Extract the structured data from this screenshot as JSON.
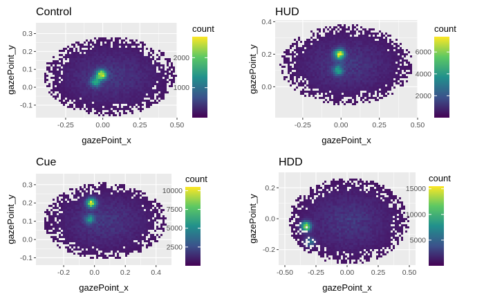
{
  "chart_data": [
    {
      "type": "heatmap",
      "title": "Control",
      "xlabel": "gazePoint_x",
      "ylabel": "gazePoint_y",
      "xlim": [
        -0.45,
        0.5
      ],
      "ylim": [
        -0.17,
        0.36
      ],
      "xticks": [
        -0.25,
        0.0,
        0.25,
        0.5
      ],
      "xtick_labels": [
        "-0.25",
        "0.00",
        "0.25",
        "0.50"
      ],
      "yticks": [
        -0.1,
        0.0,
        0.1,
        0.2,
        0.3
      ],
      "ytick_labels": [
        "-0.1",
        "0.0",
        "0.1",
        "0.2",
        "0.3"
      ],
      "legend": {
        "title": "count",
        "min": 0,
        "max": 2700,
        "ticks": [
          1000,
          2000
        ],
        "tick_labels": [
          "1000",
          "2000"
        ],
        "placement": "right"
      },
      "point_cloud": {
        "x_range": [
          -0.38,
          0.48
        ],
        "y_range": [
          -0.15,
          0.27
        ],
        "center": [
          -0.02,
          0.04
        ]
      },
      "hotspots": [
        {
          "x": -0.01,
          "y": 0.07,
          "count": 2700
        },
        {
          "x": -0.05,
          "y": 0.03,
          "count": 1500
        }
      ]
    },
    {
      "type": "heatmap",
      "title": "HUD",
      "xlabel": "gazePoint_x",
      "ylabel": "gazePoint_y",
      "xlim": [
        -0.43,
        0.5
      ],
      "ylim": [
        -0.19,
        0.41
      ],
      "xticks": [
        -0.25,
        0.0,
        0.25,
        0.5
      ],
      "xtick_labels": [
        "-0.25",
        "0.00",
        "0.25",
        "0.50"
      ],
      "yticks": [
        0.0,
        0.2,
        0.4
      ],
      "ytick_labels": [
        "0.0",
        "0.2",
        "0.4"
      ],
      "legend": {
        "title": "count",
        "min": 0,
        "max": 7400,
        "ticks": [
          2000,
          4000,
          6000
        ],
        "tick_labels": [
          "2000",
          "4000",
          "6000"
        ],
        "placement": "right"
      },
      "point_cloud": {
        "x_range": [
          -0.38,
          0.45
        ],
        "y_range": [
          -0.1,
          0.37
        ],
        "center": [
          -0.01,
          0.09
        ]
      },
      "hotspots": [
        {
          "x": -0.01,
          "y": 0.2,
          "count": 7400
        },
        {
          "x": -0.02,
          "y": 0.1,
          "count": 4000
        }
      ]
    },
    {
      "type": "heatmap",
      "title": "Cue",
      "xlabel": "gazePoint_x",
      "ylabel": "gazePoint_y",
      "xlim": [
        -0.38,
        0.5
      ],
      "ylim": [
        -0.14,
        0.36
      ],
      "xticks": [
        -0.2,
        0.0,
        0.2,
        0.4
      ],
      "xtick_labels": [
        "-0.2",
        "0.0",
        "0.2",
        "0.4"
      ],
      "yticks": [
        -0.1,
        0.0,
        0.1,
        0.2,
        0.3
      ],
      "ytick_labels": [
        "-0.1",
        "0.0",
        "0.1",
        "0.2",
        "0.3"
      ],
      "legend": {
        "title": "count",
        "min": 0,
        "max": 10500,
        "ticks": [
          2500,
          5000,
          7500,
          10000
        ],
        "tick_labels": [
          "2500",
          "5000",
          "7500",
          "10000"
        ],
        "placement": "right"
      },
      "point_cloud": {
        "x_range": [
          -0.32,
          0.45
        ],
        "y_range": [
          -0.1,
          0.3
        ],
        "center": [
          -0.02,
          0.06
        ]
      },
      "hotspots": [
        {
          "x": -0.02,
          "y": 0.2,
          "count": 10500
        },
        {
          "x": -0.03,
          "y": 0.11,
          "count": 5000
        }
      ]
    },
    {
      "type": "heatmap",
      "title": "HDD",
      "xlabel": "gazePoint_x",
      "ylabel": "gazePoint_y",
      "xlim": [
        -0.55,
        0.55
      ],
      "ylim": [
        -0.3,
        0.3
      ],
      "xticks": [
        -0.5,
        -0.25,
        0.0,
        0.25,
        0.5
      ],
      "xtick_labels": [
        "-0.50",
        "-0.25",
        "0.00",
        "0.25",
        "0.50"
      ],
      "yticks": [
        -0.2,
        0.0,
        0.2
      ],
      "ytick_labels": [
        "-0.2",
        "0.0",
        "0.2"
      ],
      "legend": {
        "title": "count",
        "min": 0,
        "max": 15500,
        "ticks": [
          5000,
          10000,
          15000
        ],
        "tick_labels": [
          "5000",
          "10000",
          "15000"
        ],
        "placement": "right"
      },
      "point_cloud": {
        "x_range": [
          -0.45,
          0.48
        ],
        "y_range": [
          -0.28,
          0.25
        ],
        "center": [
          0.0,
          0.05
        ]
      },
      "hotspots": [
        {
          "x": -0.33,
          "y": -0.05,
          "count": 15500
        },
        {
          "x": -0.3,
          "y": -0.15,
          "count": 6000
        }
      ]
    }
  ]
}
